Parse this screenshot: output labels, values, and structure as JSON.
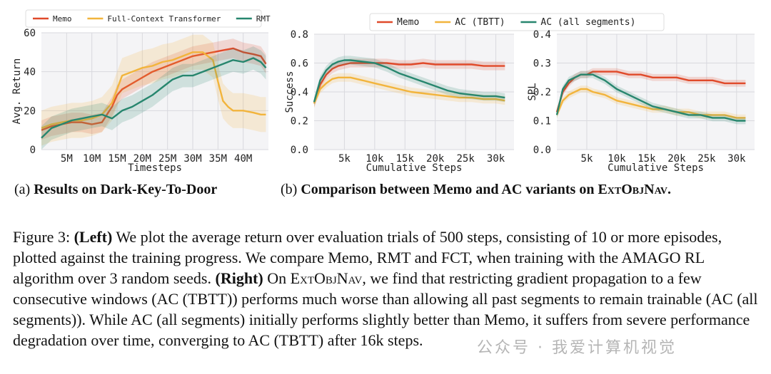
{
  "colors": {
    "memo": "#e04a2a",
    "fct": "#f2b43c",
    "rmt": "#27866e",
    "ac_tbtt": "#f2b43c",
    "ac_all": "#27866e"
  },
  "chart_data": [
    {
      "type": "line",
      "xlabel": "Timesteps",
      "ylabel": "Avg. Return",
      "xlim": [
        0,
        45
      ],
      "ylim": [
        0,
        60
      ],
      "xticks": [
        5,
        10,
        15,
        20,
        25,
        30,
        35,
        40
      ],
      "xtick_labels": [
        "5M",
        "10M",
        "15M",
        "20M",
        "25M",
        "30M",
        "35M",
        "40M"
      ],
      "yticks": [
        0,
        20,
        40,
        60
      ],
      "ytick_labels": [
        "0",
        "20",
        "40",
        "60"
      ],
      "legend": {
        "placement": "top",
        "entries": [
          "Memo",
          "Full-Context Transformer",
          "RMT"
        ]
      },
      "series": [
        {
          "name": "Memo",
          "color": "#e04a2a",
          "band": 5,
          "x": [
            0,
            2,
            4,
            6,
            8,
            10,
            12,
            14,
            15,
            16,
            18,
            20,
            22,
            24,
            26,
            28,
            30,
            32,
            34,
            36,
            38,
            40,
            42,
            43.5,
            44.5
          ],
          "y": [
            10,
            12,
            13,
            14,
            14,
            13,
            14,
            22,
            28,
            31,
            34,
            37,
            40,
            42,
            44,
            46,
            48,
            49,
            50,
            51,
            52,
            50,
            49,
            48,
            44
          ]
        },
        {
          "name": "Full-Context Transformer",
          "color": "#f2b43c",
          "band": 9,
          "x": [
            0,
            2,
            4,
            6,
            8,
            10,
            12,
            14,
            16,
            18,
            20,
            22,
            24,
            26,
            28,
            30,
            32,
            34,
            35,
            36,
            37,
            38,
            40,
            42,
            43.5,
            44.5
          ],
          "y": [
            11,
            13,
            14,
            15,
            15,
            16,
            18,
            24,
            38,
            40,
            42,
            43,
            45,
            46,
            48,
            50,
            50,
            46,
            35,
            25,
            22,
            20,
            20,
            19,
            18,
            18
          ]
        },
        {
          "name": "RMT",
          "color": "#27866e",
          "band": 6,
          "x": [
            0,
            2,
            4,
            6,
            8,
            10,
            12,
            14,
            16,
            18,
            20,
            22,
            24,
            26,
            28,
            30,
            32,
            34,
            36,
            38,
            40,
            42,
            43.5,
            44.5
          ],
          "y": [
            6,
            11,
            13,
            15,
            16,
            17,
            18,
            16,
            20,
            22,
            25,
            28,
            32,
            36,
            38,
            38,
            40,
            42,
            44,
            46,
            45,
            47,
            45,
            42
          ]
        }
      ]
    },
    {
      "type": "line",
      "xlabel": "Cumulative Steps",
      "ylabel": "Success",
      "xlim": [
        0,
        33
      ],
      "ylim": [
        0,
        0.8
      ],
      "xticks": [
        5,
        10,
        15,
        20,
        25,
        30
      ],
      "xtick_labels": [
        "5k",
        "10k",
        "15k",
        "20k",
        "25k",
        "30k"
      ],
      "yticks": [
        0,
        0.2,
        0.4,
        0.6,
        0.8
      ],
      "ytick_labels": [
        "0.0",
        "0.2",
        "0.4",
        "0.6",
        "0.8"
      ],
      "legend": {
        "placement": "top",
        "entries": [
          "Memo",
          "AC (TBTT)",
          "AC (all segments)"
        ]
      },
      "series": [
        {
          "name": "Memo",
          "color": "#e04a2a",
          "band": 0.03,
          "x": [
            0,
            1,
            2,
            3,
            4,
            5,
            6,
            8,
            10,
            12,
            14,
            16,
            18,
            20,
            22,
            24,
            26,
            28,
            30,
            31.5
          ],
          "y": [
            0.32,
            0.45,
            0.52,
            0.56,
            0.58,
            0.59,
            0.6,
            0.6,
            0.6,
            0.6,
            0.59,
            0.59,
            0.6,
            0.59,
            0.59,
            0.59,
            0.59,
            0.58,
            0.58,
            0.58
          ]
        },
        {
          "name": "AC (TBTT)",
          "color": "#f2b43c",
          "band": 0.03,
          "x": [
            0,
            1,
            2,
            3,
            4,
            5,
            6,
            8,
            10,
            12,
            14,
            16,
            18,
            20,
            22,
            24,
            26,
            28,
            30,
            31.5
          ],
          "y": [
            0.32,
            0.42,
            0.46,
            0.49,
            0.5,
            0.5,
            0.5,
            0.48,
            0.46,
            0.44,
            0.42,
            0.4,
            0.39,
            0.38,
            0.37,
            0.36,
            0.36,
            0.35,
            0.35,
            0.34
          ]
        },
        {
          "name": "AC (all segments)",
          "color": "#27866e",
          "band": 0.03,
          "x": [
            0,
            1,
            2,
            3,
            4,
            5,
            6,
            8,
            10,
            12,
            14,
            16,
            18,
            20,
            22,
            24,
            26,
            28,
            30,
            31.5
          ],
          "y": [
            0.33,
            0.48,
            0.55,
            0.59,
            0.61,
            0.62,
            0.62,
            0.61,
            0.6,
            0.57,
            0.53,
            0.5,
            0.47,
            0.44,
            0.41,
            0.39,
            0.38,
            0.37,
            0.37,
            0.36
          ]
        }
      ]
    },
    {
      "type": "line",
      "xlabel": "Cumulative Steps",
      "ylabel": "SPL",
      "xlim": [
        0,
        33
      ],
      "ylim": [
        0,
        0.4
      ],
      "xticks": [
        5,
        10,
        15,
        20,
        25,
        30
      ],
      "xtick_labels": [
        "5k",
        "10k",
        "15k",
        "20k",
        "25k",
        "30k"
      ],
      "yticks": [
        0,
        0.1,
        0.2,
        0.3,
        0.4
      ],
      "ytick_labels": [
        "0.0",
        "0.1",
        "0.2",
        "0.3",
        "0.4"
      ],
      "series": [
        {
          "name": "Memo",
          "color": "#e04a2a",
          "band": 0.012,
          "x": [
            0,
            1,
            2,
            3,
            4,
            5,
            6,
            8,
            10,
            12,
            14,
            16,
            18,
            20,
            22,
            24,
            26,
            28,
            30,
            31.5
          ],
          "y": [
            0.13,
            0.2,
            0.23,
            0.25,
            0.26,
            0.26,
            0.27,
            0.27,
            0.27,
            0.26,
            0.26,
            0.25,
            0.25,
            0.25,
            0.24,
            0.24,
            0.24,
            0.23,
            0.23,
            0.23
          ]
        },
        {
          "name": "AC (TBTT)",
          "color": "#f2b43c",
          "band": 0.012,
          "x": [
            0,
            1,
            2,
            3,
            4,
            5,
            6,
            8,
            10,
            12,
            14,
            16,
            18,
            20,
            22,
            24,
            26,
            28,
            30,
            31.5
          ],
          "y": [
            0.12,
            0.17,
            0.19,
            0.2,
            0.21,
            0.21,
            0.2,
            0.19,
            0.17,
            0.16,
            0.15,
            0.14,
            0.14,
            0.13,
            0.13,
            0.12,
            0.12,
            0.12,
            0.11,
            0.11
          ]
        },
        {
          "name": "AC (all segments)",
          "color": "#27866e",
          "band": 0.012,
          "x": [
            0,
            1,
            2,
            3,
            4,
            5,
            6,
            8,
            10,
            12,
            14,
            16,
            18,
            20,
            22,
            24,
            26,
            28,
            30,
            31.5
          ],
          "y": [
            0.12,
            0.21,
            0.24,
            0.25,
            0.26,
            0.26,
            0.26,
            0.24,
            0.21,
            0.19,
            0.17,
            0.15,
            0.14,
            0.13,
            0.12,
            0.12,
            0.11,
            0.11,
            0.1,
            0.1
          ]
        }
      ]
    }
  ],
  "subcaptions": {
    "a": {
      "prefix": "(a) ",
      "bold": "Results on Dark-Key-To-Door"
    },
    "b": {
      "prefix": "(b) ",
      "bold_before": "Comparison between Memo and AC variants on ",
      "bold_sc": "ExtObjNav",
      "bold_after": "."
    }
  },
  "caption": {
    "lead": "Figure 3: ",
    "left_label": "(Left)",
    "left_text": " We plot the average return over evaluation trials of 500 steps, consisting of 10 or more episodes, plotted against the training progress.  We compare Memo, RMT and FCT, when training with the AMAGO RL algorithm over 3 random seeds. ",
    "right_label": "(Right)",
    "right_pre": " On ",
    "right_sc": "ExtObjNav",
    "right_text": ", we find that restricting gradient propagation to a few consecutive windows (AC (TBTT)) performs much worse than allowing all past segments to remain trainable (AC (all segments)). While AC (all segments) initially performs slightly better than Memo, it suffers from severe performance degradation over time, converging to AC (TBTT) after 16k steps."
  },
  "watermark": "公众号 · 我爱计算机视觉"
}
